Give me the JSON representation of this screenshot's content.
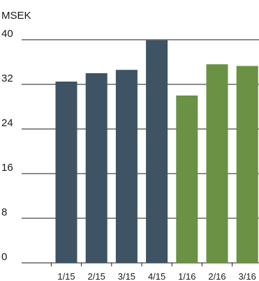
{
  "chart_data": {
    "type": "bar",
    "unit_label": "MSEK",
    "categories": [
      "1/15",
      "2/15",
      "3/15",
      "4/15",
      "1/16",
      "2/16",
      "3/16"
    ],
    "values": [
      32.5,
      34.0,
      34.6,
      39.9,
      30.0,
      35.6,
      35.3
    ],
    "bar_colors": [
      "#3e5363",
      "#3e5363",
      "#3e5363",
      "#3e5363",
      "#6a9144",
      "#6a9144",
      "#6a9144"
    ],
    "ylim": [
      0,
      40
    ],
    "yticks": [
      0,
      8,
      16,
      24,
      32,
      40
    ],
    "grid": true,
    "title": "",
    "xlabel": "",
    "ylabel": ""
  }
}
